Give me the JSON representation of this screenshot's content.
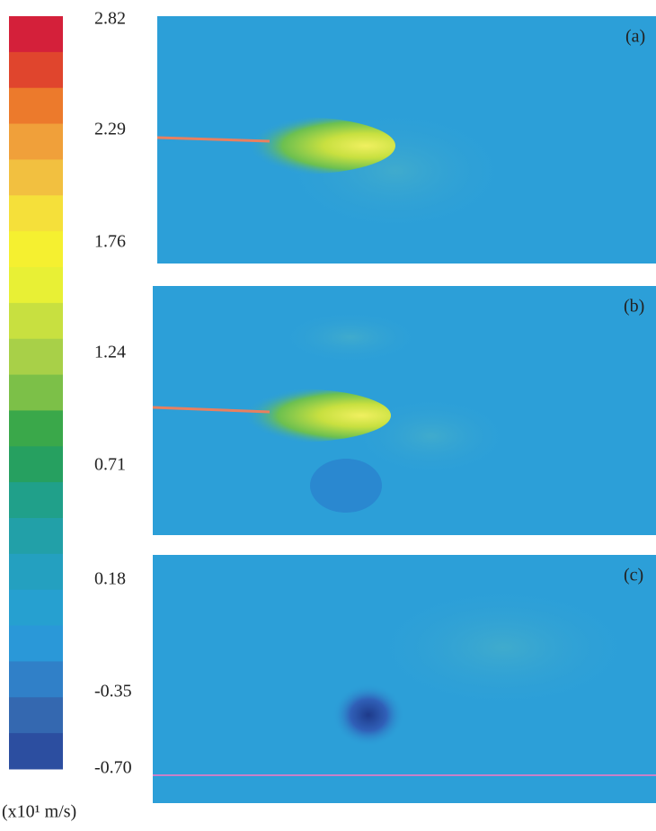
{
  "colorbar": {
    "ticks": [
      "2.82",
      "2.29",
      "1.76",
      "1.24",
      "0.71",
      "0.18",
      "-0.35",
      "-0.70"
    ],
    "unit": "(x10¹ m/s)"
  },
  "panels": [
    {
      "label": "(a)"
    },
    {
      "label": "(b)"
    },
    {
      "label": "(c)"
    }
  ]
}
